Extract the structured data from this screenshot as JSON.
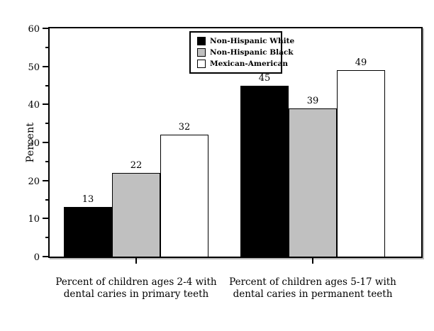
{
  "chart_data": {
    "type": "bar",
    "title": "",
    "ylabel": "Percent",
    "xlabel": "",
    "ylim": [
      0,
      60
    ],
    "yticks": [
      0,
      10,
      20,
      30,
      40,
      50,
      60
    ],
    "minor_ticks": [
      5,
      15,
      25,
      35,
      45,
      55
    ],
    "grid": false,
    "legend_position": "top-center-inside",
    "categories": [
      "Percent of children ages 2-4 with dental caries in primary teeth",
      "Percent of children ages 5-17 with dental caries in permanent teeth"
    ],
    "category_lines": [
      [
        "Percent of children ages 2-4 with",
        "dental caries in primary teeth"
      ],
      [
        "Percent of children ages 5-17 with",
        "dental caries in permanent teeth"
      ]
    ],
    "series": [
      {
        "name": "Non-Hispanic White",
        "color": "#000000",
        "values": [
          13,
          45
        ]
      },
      {
        "name": "Non-Hispanic Black",
        "color": "#c0c0c0",
        "values": [
          22,
          39
        ]
      },
      {
        "name": "Mexican-American",
        "color": "#ffffff",
        "values": [
          32,
          49
        ]
      }
    ]
  },
  "colors": {
    "background": "#ffffff",
    "bar_border": "#000000",
    "axis": "#000000",
    "axis_shadow": "#b9b9b9"
  }
}
